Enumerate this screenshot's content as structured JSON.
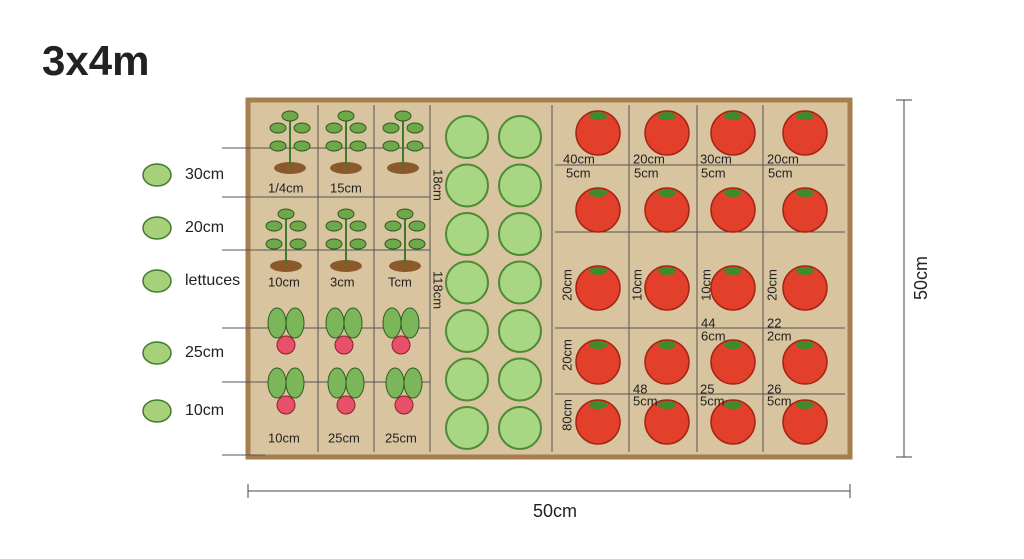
{
  "title": "3x4m",
  "legend": [
    "30cm",
    "20cm",
    "lettuces",
    "25cm",
    "10cm"
  ],
  "dimensions": {
    "height": "50cm",
    "width": "50cm"
  },
  "beds": {
    "herbs": {
      "labels": [
        "1/4cm",
        "15cm",
        "10cm",
        "3cm",
        "Tcm",
        "10cm",
        "25cm",
        "25cm"
      ]
    },
    "lettuce": {
      "labels": [
        "18cm",
        "118cm"
      ]
    },
    "tomatoes": {
      "labels": [
        "40cm",
        "20cm",
        "30cm",
        "20cm",
        "5cm",
        "5cm",
        "5cm",
        "5cm",
        "20cm",
        "10cm",
        "10cm",
        "20cm",
        "44",
        "22",
        "6cm",
        "2cm",
        "20cm",
        "48",
        "25",
        "26",
        "80cm",
        "5cm",
        "5cm",
        "5cm"
      ]
    }
  }
}
